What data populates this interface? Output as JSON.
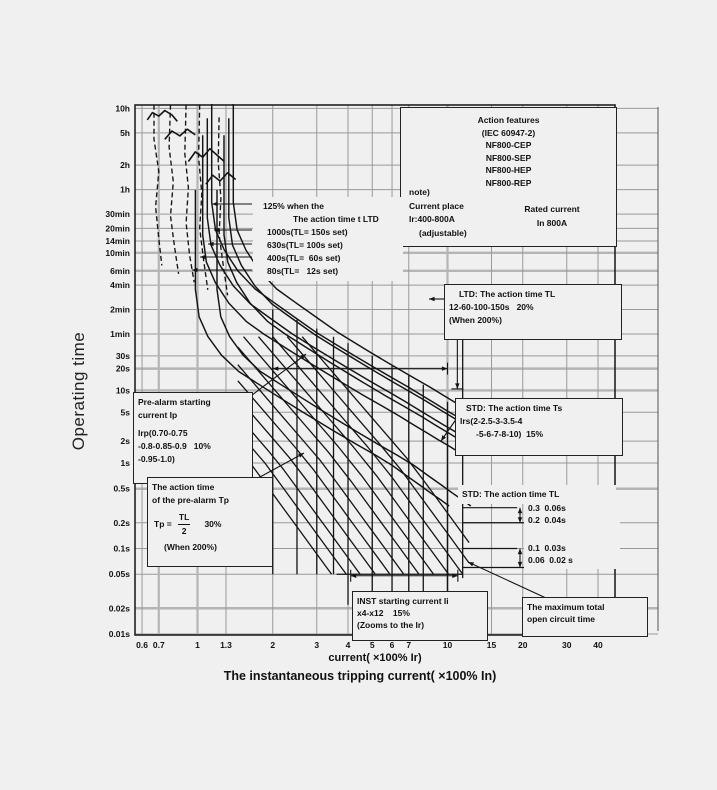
{
  "axes": {
    "y_label": "Operating time",
    "x_label_1": "current( ×100% Ir)",
    "x_label_2": "The instantaneous tripping current( ×100% In)"
  },
  "chart_data": {
    "type": "line",
    "title": "Circuit breaker time-current trip characteristic",
    "xlabel": "current( ×100% Ir)",
    "ylabel": "Operating time",
    "xlim": [
      0.56,
      46.8
    ],
    "ylim_seconds": [
      0.01,
      42000
    ],
    "grid": true,
    "x_ticks": [
      {
        "v": 0.6,
        "label": "0.6"
      },
      {
        "v": 0.7,
        "label": "0.7"
      },
      {
        "v": 1,
        "label": "1"
      },
      {
        "v": 1.3,
        "label": "1.3"
      },
      {
        "v": 2,
        "label": "2"
      },
      {
        "v": 3,
        "label": "3"
      },
      {
        "v": 4,
        "label": "4"
      },
      {
        "v": 5,
        "label": "5"
      },
      {
        "v": 6,
        "label": "6"
      },
      {
        "v": 7,
        "label": "7"
      },
      {
        "v": 10,
        "label": "10"
      },
      {
        "v": 15,
        "label": "15"
      },
      {
        "v": 20,
        "label": "20"
      },
      {
        "v": 30,
        "label": "30"
      },
      {
        "v": 40,
        "label": "40"
      }
    ],
    "y_ticks": [
      {
        "t": 36000,
        "label": "10h"
      },
      {
        "t": 18000,
        "label": "5h"
      },
      {
        "t": 7200,
        "label": "2h"
      },
      {
        "t": 3600,
        "label": "1h"
      },
      {
        "t": 1800,
        "label": "30min"
      },
      {
        "t": 1200,
        "label": "20min"
      },
      {
        "t": 840,
        "label": "14min"
      },
      {
        "t": 600,
        "label": "10min"
      },
      {
        "t": 360,
        "label": "6min"
      },
      {
        "t": 240,
        "label": "4min"
      },
      {
        "t": 120,
        "label": "2min"
      },
      {
        "t": 60,
        "label": "1min"
      },
      {
        "t": 30,
        "label": "30s"
      },
      {
        "t": 20,
        "label": "20s"
      },
      {
        "t": 10,
        "label": "10s"
      },
      {
        "t": 5,
        "label": "5s"
      },
      {
        "t": 2,
        "label": "2s"
      },
      {
        "t": 1,
        "label": "1s"
      },
      {
        "t": 0.5,
        "label": "0.5s"
      },
      {
        "t": 0.2,
        "label": "0.2s"
      },
      {
        "t": 0.1,
        "label": "0.1s"
      },
      {
        "t": 0.05,
        "label": "0.05s"
      },
      {
        "t": 0.02,
        "label": "0.02s"
      },
      {
        "t": 0.01,
        "label": "0.01s"
      }
    ],
    "x_major": [
      0.7,
      1,
      10
    ],
    "y_major": [
      600,
      360,
      20,
      10,
      0.5,
      0.02
    ],
    "ltd_base_curve": [
      [
        1.14,
        42000
      ],
      [
        1.14,
        2500
      ],
      [
        1.18,
        1150
      ],
      [
        1.28,
        650
      ],
      [
        1.45,
        360
      ],
      [
        1.7,
        215
      ],
      [
        2,
        150
      ],
      [
        2.5,
        92
      ],
      [
        3,
        62
      ],
      [
        4,
        34
      ],
      [
        5,
        21.5
      ],
      [
        6,
        15
      ],
      [
        7,
        11
      ],
      [
        8,
        8.3
      ],
      [
        9,
        6.5
      ],
      [
        10,
        5.2
      ],
      [
        11,
        4.3
      ],
      [
        11.8,
        3.7
      ]
    ],
    "ltd_variants": [
      {
        "name": "TL=150s left",
        "xf": 1.0,
        "tf": 1.0
      },
      {
        "name": "TL=150s right",
        "xf": 1.22,
        "tf": 1.0
      },
      {
        "name": "TL=100s left",
        "xf": 0.96,
        "tf": 0.65
      },
      {
        "name": "TL=100s right",
        "xf": 1.17,
        "tf": 0.65
      },
      {
        "name": "TL=60s left",
        "xf": 0.92,
        "tf": 0.4
      },
      {
        "name": "TL=60s right",
        "xf": 1.12,
        "tf": 0.4
      },
      {
        "name": "TL=12s left",
        "xf": 0.86,
        "tf": 0.085
      },
      {
        "name": "TL=12s right",
        "xf": 1.05,
        "tf": 0.085
      }
    ],
    "dashed_curves": [
      [
        [
          0.67,
          40000
        ],
        [
          0.67,
          15000
        ],
        [
          0.7,
          6000
        ],
        [
          0.68,
          2200
        ],
        [
          0.7,
          900
        ],
        [
          0.72,
          420
        ]
      ],
      [
        [
          0.78,
          40000
        ],
        [
          0.77,
          12000
        ],
        [
          0.8,
          4500
        ],
        [
          0.78,
          1700
        ],
        [
          0.81,
          700
        ],
        [
          0.84,
          330
        ]
      ],
      [
        [
          0.9,
          40000
        ],
        [
          0.89,
          10000
        ],
        [
          0.92,
          3800
        ],
        [
          0.9,
          1400
        ],
        [
          0.93,
          560
        ],
        [
          0.97,
          260
        ]
      ],
      [
        [
          1.02,
          40000
        ],
        [
          1.01,
          9000
        ],
        [
          1.04,
          3200
        ],
        [
          1.02,
          1200
        ],
        [
          1.06,
          470
        ],
        [
          1.1,
          210
        ]
      ],
      [
        [
          1.22,
          28000
        ],
        [
          1.21,
          8000
        ],
        [
          1.24,
          2800
        ],
        [
          1.22,
          1000
        ],
        [
          1.27,
          400
        ],
        [
          1.32,
          180
        ]
      ]
    ],
    "squiggle_curves": [
      [
        [
          0.63,
          26000
        ],
        [
          0.66,
          32000
        ],
        [
          0.7,
          29000
        ],
        [
          0.74,
          34000
        ],
        [
          0.79,
          30000
        ],
        [
          0.83,
          25000
        ]
      ],
      [
        [
          0.74,
          15000
        ],
        [
          0.79,
          19000
        ],
        [
          0.85,
          16500
        ],
        [
          0.91,
          20000
        ],
        [
          0.98,
          17000
        ]
      ],
      [
        [
          0.92,
          8000
        ],
        [
          0.98,
          10500
        ],
        [
          1.05,
          9000
        ],
        [
          1.12,
          11500
        ],
        [
          1.2,
          9500
        ],
        [
          1.28,
          8000
        ]
      ],
      [
        [
          1.08,
          4200
        ],
        [
          1.15,
          5400
        ],
        [
          1.23,
          4600
        ],
        [
          1.32,
          5800
        ],
        [
          1.42,
          4800
        ]
      ]
    ],
    "std_mesh": {
      "slope": 4,
      "A": [
        2600,
        1500,
        880,
        520,
        300,
        175,
        100,
        60,
        35,
        20,
        12,
        7
      ],
      "t_max": 55,
      "t_min": 0.05,
      "x_min": 1.45,
      "x_max": 12.2
    },
    "pickup_verticals": [
      [
        2,
        120,
        0.05
      ],
      [
        2.5,
        90,
        0.05
      ],
      [
        3,
        70,
        0.05
      ],
      [
        3.5,
        55,
        0.05
      ],
      [
        4,
        45,
        0.022
      ],
      [
        5,
        30,
        0.022
      ],
      [
        6,
        22,
        0.022
      ],
      [
        7,
        16,
        0.022
      ],
      [
        8,
        12,
        0.022
      ],
      [
        10,
        7,
        0.022
      ],
      [
        11.5,
        60,
        0.045
      ]
    ],
    "delay_horizontals": [
      [
        0.3,
        11.5,
        19
      ],
      [
        0.2,
        11.5,
        46
      ],
      [
        0.1,
        11.5,
        19
      ],
      [
        0.06,
        11.5,
        46
      ],
      [
        0.05,
        3.6,
        11.5
      ],
      [
        0.03,
        4.2,
        11.5
      ],
      [
        0.02,
        4.2,
        11.5
      ]
    ],
    "dim_arrows": [
      {
        "dir": "h",
        "t": 20,
        "x1": 2,
        "x2": 10,
        "ticks": true
      },
      {
        "dir": "v",
        "x": 10.95,
        "t1": 130,
        "t2": 10.5,
        "ticks": true
      },
      {
        "dir": "h",
        "t": 0.048,
        "x1": 4.1,
        "x2": 11,
        "ticks": true
      },
      {
        "dir": "v",
        "x": 19.5,
        "t1": 0.3,
        "t2": 0.2,
        "ticks": false
      },
      {
        "dir": "v",
        "x": 19.5,
        "t1": 0.1,
        "t2": 0.06,
        "ticks": false
      }
    ]
  },
  "annotations": {
    "ltd_settings": {
      "lines": [
        "125% when the",
        "The action time t LTD",
        "1000s(TL= 150s set)",
        "630s(TL= 100s set)",
        "400s(TL=  60s set)",
        "80s(TL=   12s set)"
      ]
    },
    "ltd_box": {
      "lines": [
        "LTD: The action time TL",
        "12-60-100-150s   20%",
        "(When 200%)"
      ]
    },
    "prealarm_current_box": {
      "lines": [
        "Pre-alarm starting",
        "current Ip",
        "Irp(0.70-0.75",
        "-0.8-0.85-0.9   10%",
        "-0.95-1.0)"
      ]
    },
    "std_ts_box": {
      "lines": [
        "STD: The action time Ts",
        "Irs(2-2.5-3-3.5-4",
        "-5-6-7-8-10)  15%"
      ]
    },
    "prealarm_time_box": {
      "title1": "The action time",
      "title2": "of the pre-alarm Tp",
      "formula_lhs": "Tp =",
      "formula_num": "TL",
      "formula_den": "2",
      "formula_tol": "30%",
      "when": "(When 200%)"
    },
    "std_tl": {
      "title": "STD: The action time TL",
      "rows": [
        "0.3  0.06s",
        "0.2  0.04s",
        "0.1  0.03s",
        "0.06  0.02 s"
      ]
    },
    "inst_box": {
      "lines": [
        "INST starting current Ii",
        "x4-x12    15%",
        "(Zooms to the Ir)"
      ]
    },
    "max_open_box": {
      "lines": [
        "The maximum total",
        "open circuit time"
      ]
    },
    "action_box": {
      "lines": [
        "Action features",
        "(IEC 60947-2)",
        "NF800-CEP",
        "NF800-SEP",
        "NF800-HEP",
        "NF800-REP"
      ],
      "note_lines": [
        "note)",
        "Current place",
        "Ir:400-800A",
        "(adjustable)"
      ],
      "rated_lines": [
        "Rated current",
        "In 800A"
      ]
    }
  },
  "colors": {
    "bg": "#f0f0f0",
    "grid": "#999999",
    "grid_major": "#b5b5b5",
    "curve": "#141414",
    "border": "#222222",
    "text": "#111111"
  }
}
